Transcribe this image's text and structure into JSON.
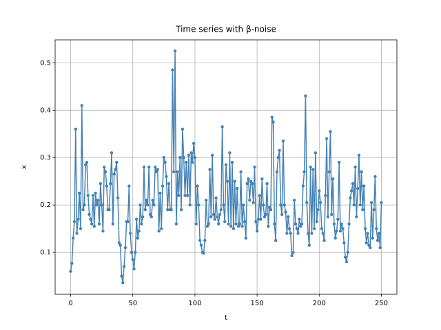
{
  "chart_data": {
    "type": "line",
    "title": "Time series with β-noise",
    "xlabel": "t",
    "ylabel": "x",
    "x": [
      0,
      1,
      2,
      3,
      4,
      5,
      6,
      7,
      8,
      9,
      10,
      11,
      12,
      13,
      14,
      15,
      16,
      17,
      18,
      19,
      20,
      21,
      22,
      23,
      24,
      25,
      26,
      27,
      28,
      29,
      30,
      31,
      32,
      33,
      34,
      35,
      36,
      37,
      38,
      39,
      40,
      41,
      42,
      43,
      44,
      45,
      46,
      47,
      48,
      49,
      50,
      51,
      52,
      53,
      54,
      55,
      56,
      57,
      58,
      59,
      60,
      61,
      62,
      63,
      64,
      65,
      66,
      67,
      68,
      69,
      70,
      71,
      72,
      73,
      74,
      75,
      76,
      77,
      78,
      79,
      80,
      81,
      82,
      83,
      84,
      85,
      86,
      87,
      88,
      89,
      90,
      91,
      92,
      93,
      94,
      95,
      96,
      97,
      98,
      99,
      100,
      101,
      102,
      103,
      104,
      105,
      106,
      107,
      108,
      109,
      110,
      111,
      112,
      113,
      114,
      115,
      116,
      117,
      118,
      119,
      120,
      121,
      122,
      123,
      124,
      125,
      126,
      127,
      128,
      129,
      130,
      131,
      132,
      133,
      134,
      135,
      136,
      137,
      138,
      139,
      140,
      141,
      142,
      143,
      144,
      145,
      146,
      147,
      148,
      149,
      150,
      151,
      152,
      153,
      154,
      155,
      156,
      157,
      158,
      159,
      160,
      161,
      162,
      163,
      164,
      165,
      166,
      167,
      168,
      169,
      170,
      171,
      172,
      173,
      174,
      175,
      176,
      177,
      178,
      179,
      180,
      181,
      182,
      183,
      184,
      185,
      186,
      187,
      188,
      189,
      190,
      191,
      192,
      193,
      194,
      195,
      196,
      197,
      198,
      199,
      200,
      201,
      202,
      203,
      204,
      205,
      206,
      207,
      208,
      209,
      210,
      211,
      212,
      213,
      214,
      215,
      216,
      217,
      218,
      219,
      220,
      221,
      222,
      223,
      224,
      225,
      226,
      227,
      228,
      229,
      230,
      231,
      232,
      233,
      234,
      235,
      236,
      237,
      238,
      239,
      240,
      241,
      242,
      243,
      244,
      245,
      246,
      247,
      248,
      249,
      250
    ],
    "values": [
      0.06,
      0.077,
      0.13,
      0.165,
      0.36,
      0.14,
      0.17,
      0.225,
      0.15,
      0.41,
      0.19,
      0.2,
      0.285,
      0.29,
      0.22,
      0.18,
      0.17,
      0.16,
      0.22,
      0.155,
      0.225,
      0.2,
      0.21,
      0.16,
      0.245,
      0.2,
      0.145,
      0.28,
      0.27,
      0.24,
      0.19,
      0.19,
      0.245,
      0.31,
      0.16,
      0.265,
      0.275,
      0.29,
      0.215,
      0.12,
      0.115,
      0.05,
      0.036,
      0.07,
      0.11,
      0.165,
      0.165,
      0.24,
      0.14,
      0.1,
      0.085,
      0.065,
      0.1,
      0.17,
      0.13,
      0.145,
      0.2,
      0.16,
      0.175,
      0.28,
      0.19,
      0.21,
      0.2,
      0.28,
      0.18,
      0.175,
      0.21,
      0.2,
      0.28,
      0.27,
      0.275,
      0.145,
      0.225,
      0.15,
      0.24,
      0.3,
      0.29,
      0.26,
      0.19,
      0.245,
      0.19,
      0.19,
      0.485,
      0.27,
      0.525,
      0.16,
      0.27,
      0.22,
      0.3,
      0.19,
      0.36,
      0.3,
      0.22,
      0.29,
      0.22,
      0.305,
      0.2,
      0.31,
      0.29,
      0.33,
      0.3,
      0.16,
      0.24,
      0.2,
      0.125,
      0.115,
      0.1,
      0.098,
      0.125,
      0.21,
      0.155,
      0.16,
      0.275,
      0.175,
      0.305,
      0.18,
      0.17,
      0.215,
      0.175,
      0.16,
      0.18,
      0.19,
      0.365,
      0.2,
      0.165,
      0.285,
      0.25,
      0.16,
      0.31,
      0.155,
      0.29,
      0.15,
      0.25,
      0.16,
      0.235,
      0.155,
      0.16,
      0.27,
      0.155,
      0.2,
      0.165,
      0.13,
      0.245,
      0.255,
      0.21,
      0.25,
      0.245,
      0.205,
      0.28,
      0.165,
      0.145,
      0.17,
      0.22,
      0.17,
      0.255,
      0.2,
      0.175,
      0.18,
      0.245,
      0.155,
      0.195,
      0.19,
      0.385,
      0.375,
      0.16,
      0.125,
      0.27,
      0.3,
      0.315,
      0.2,
      0.18,
      0.335,
      0.2,
      0.185,
      0.14,
      0.175,
      0.15,
      0.14,
      0.093,
      0.1,
      0.21,
      0.16,
      0.15,
      0.14,
      0.17,
      0.155,
      0.16,
      0.24,
      0.27,
      0.43,
      0.205,
      0.14,
      0.115,
      0.28,
      0.14,
      0.275,
      0.15,
      0.31,
      0.165,
      0.19,
      0.23,
      0.205,
      0.15,
      0.14,
      0.125,
      0.22,
      0.34,
      0.175,
      0.27,
      0.355,
      0.18,
      0.255,
      0.16,
      0.13,
      0.145,
      0.17,
      0.29,
      0.145,
      0.16,
      0.15,
      0.12,
      0.09,
      0.08,
      0.1,
      0.16,
      0.215,
      0.23,
      0.245,
      0.2,
      0.28,
      0.175,
      0.235,
      0.305,
      0.2,
      0.27,
      0.19,
      0.24,
      0.15,
      0.12,
      0.14,
      0.115,
      0.11,
      0.205,
      0.13,
      0.19,
      0.26,
      0.15,
      0.125,
      0.14,
      0.11,
      0.205
    ],
    "color": "#4682b4",
    "markers": true,
    "xlim": [
      -12.5,
      262.5
    ],
    "xticks": [
      0,
      50,
      100,
      150,
      200,
      250
    ],
    "ylim": [
      0.0116,
      0.5484
    ],
    "yticks": [
      0.1,
      0.2,
      0.3,
      0.4,
      0.5
    ],
    "grid": true
  }
}
